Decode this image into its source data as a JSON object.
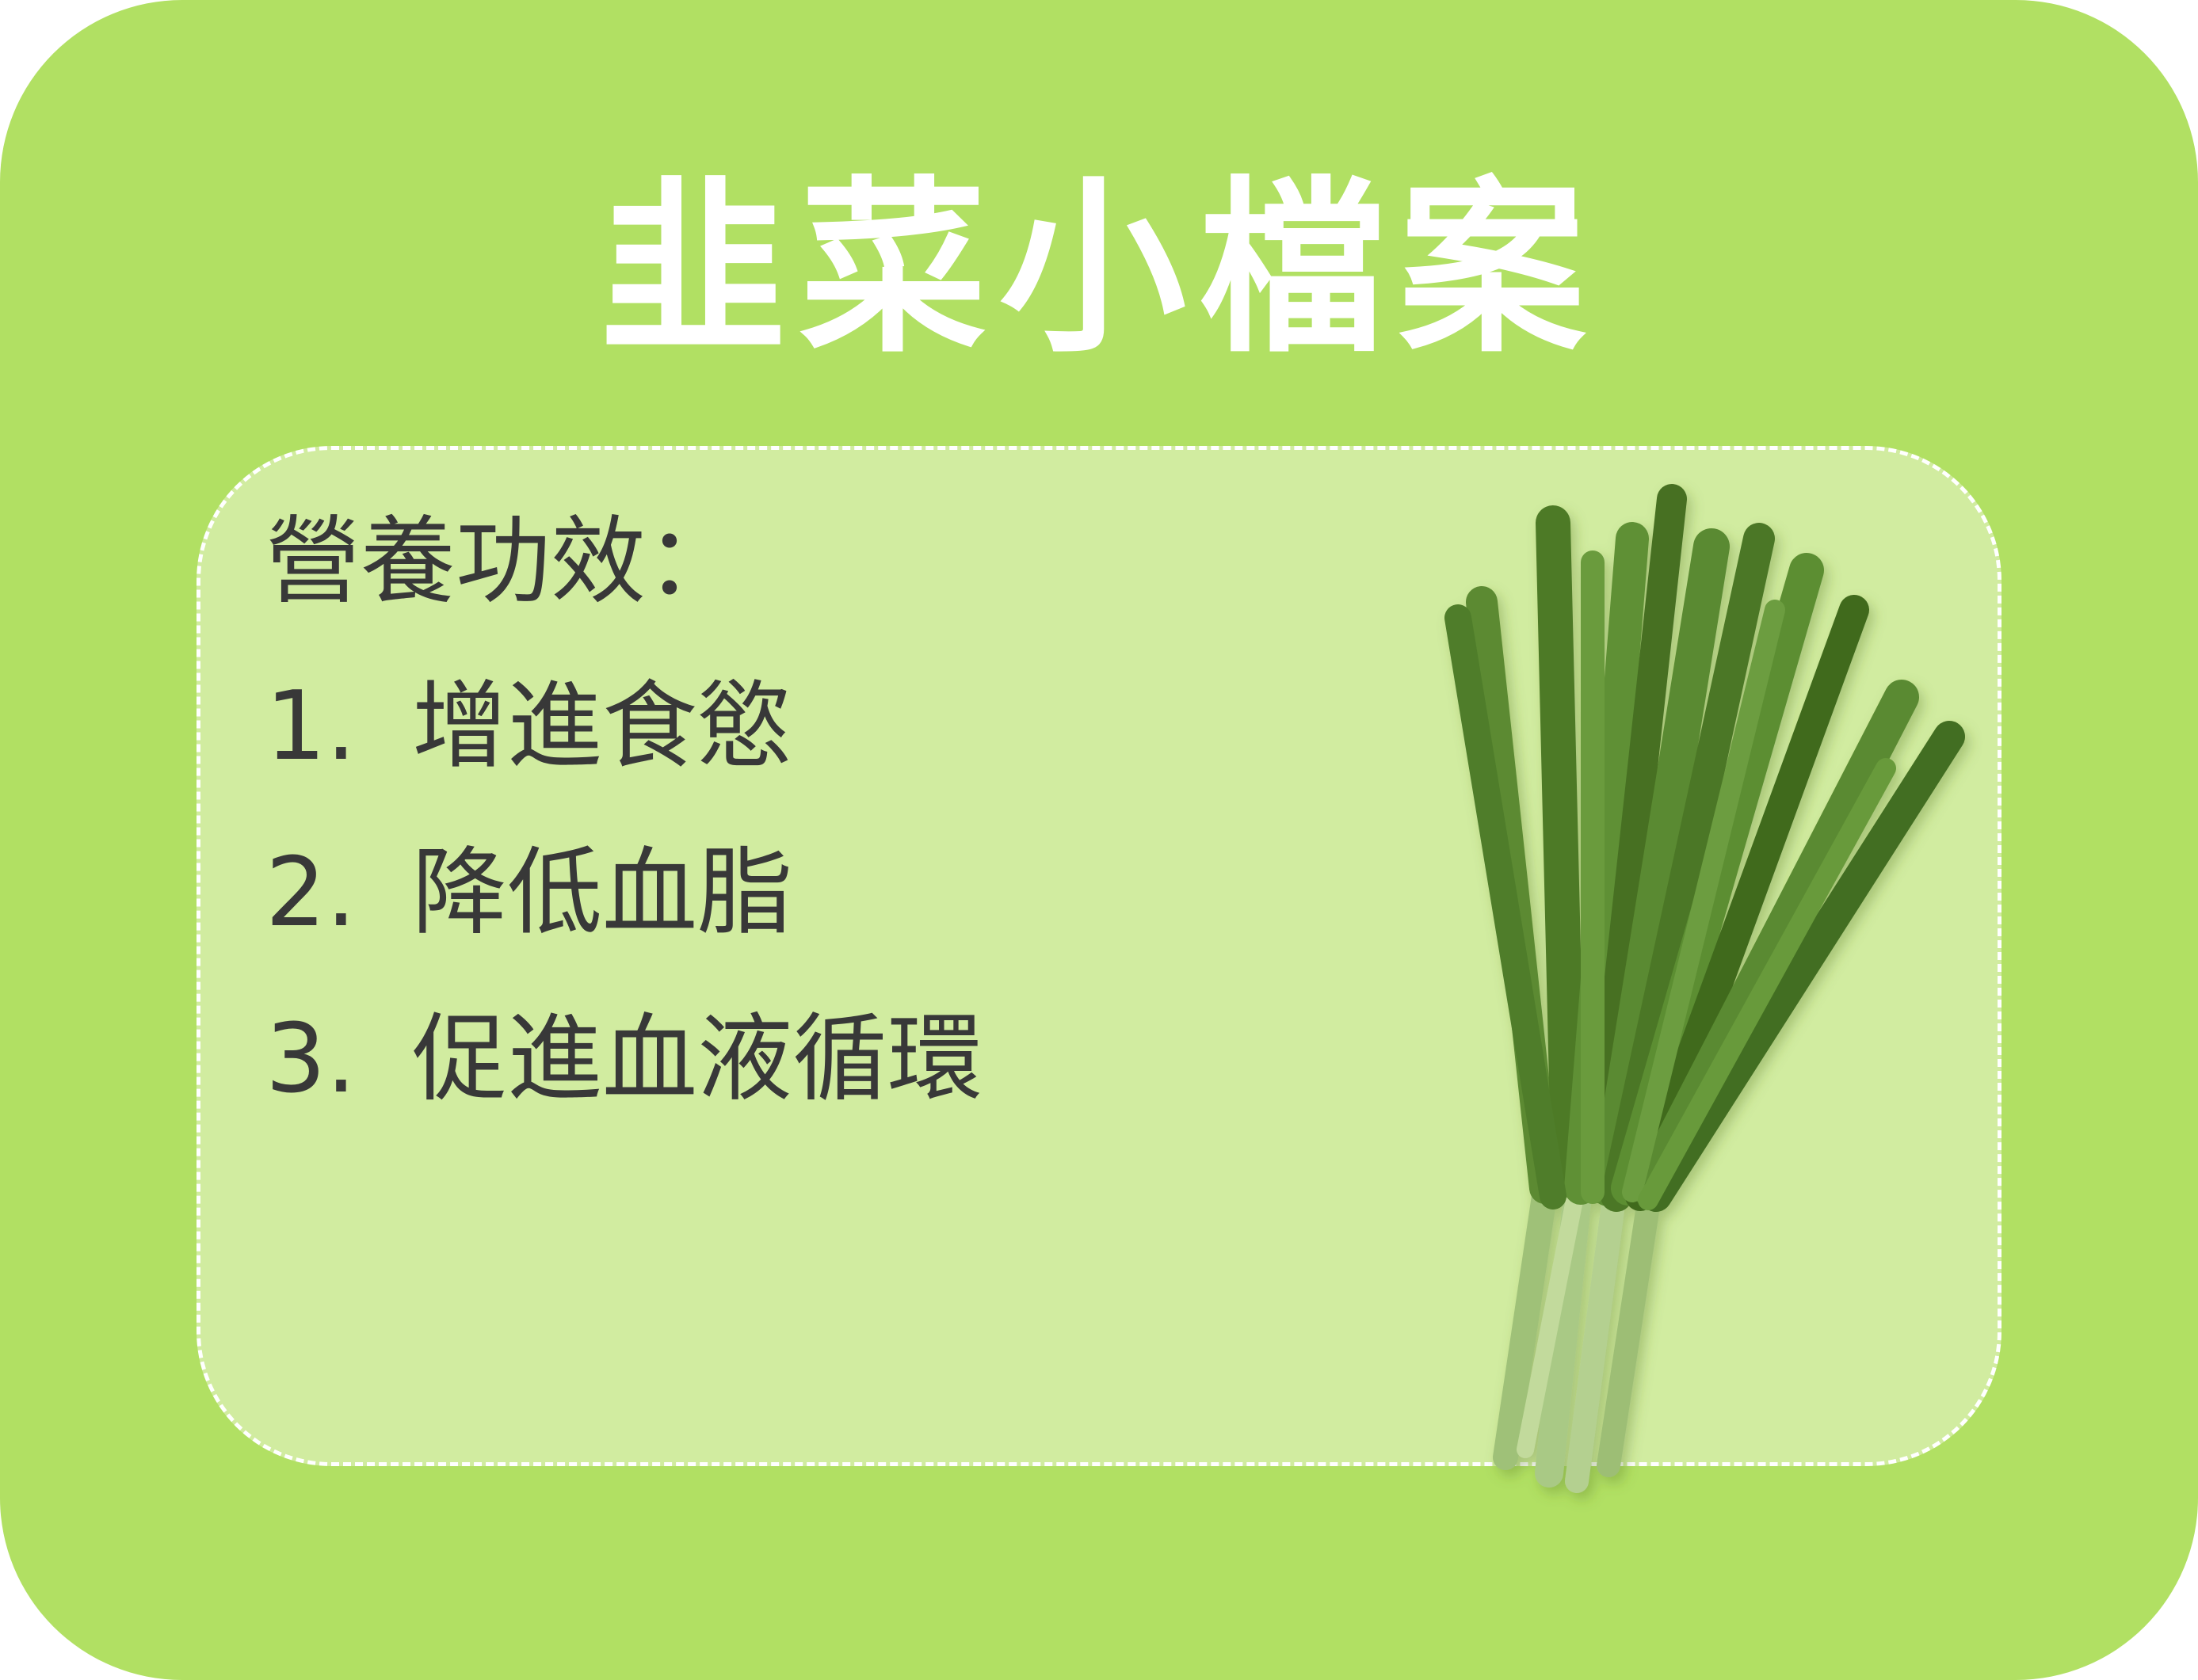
{
  "title": "韭菜小檔案",
  "section": {
    "heading": "營養功效：",
    "items": [
      {
        "number": "1.",
        "text": "增進食慾"
      },
      {
        "number": "2.",
        "text": "降低血脂"
      },
      {
        "number": "3.",
        "text": "促進血液循環"
      }
    ]
  },
  "colors": {
    "background": "#b1e063",
    "panel": "#d1eca0",
    "text": "#383838",
    "title": "#ffffff"
  },
  "illustration": {
    "icon": "chives-icon"
  }
}
